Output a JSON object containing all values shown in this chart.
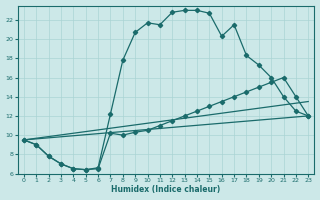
{
  "xlabel": "Humidex (Indice chaleur)",
  "xlim": [
    -0.5,
    23.5
  ],
  "ylim": [
    6,
    23.5
  ],
  "xticks": [
    0,
    1,
    2,
    3,
    4,
    5,
    6,
    7,
    8,
    9,
    10,
    11,
    12,
    13,
    14,
    15,
    16,
    17,
    18,
    19,
    20,
    21,
    22,
    23
  ],
  "yticks": [
    6,
    8,
    10,
    12,
    14,
    16,
    18,
    20,
    22
  ],
  "bg_color": "#cce8e8",
  "line_color": "#1a6b6b",
  "grid_color": "#aad4d4",
  "upper_curve": {
    "x": [
      0,
      1,
      2,
      3,
      4,
      5,
      6,
      7,
      8,
      9,
      10,
      11,
      12,
      13,
      14,
      15,
      16,
      17,
      18,
      19,
      20,
      21,
      22,
      23
    ],
    "y": [
      9.5,
      9.0,
      7.8,
      7.0,
      6.5,
      6.4,
      6.6,
      12.2,
      17.8,
      20.7,
      21.7,
      21.5,
      22.8,
      23.0,
      23.0,
      22.7,
      20.3,
      21.5,
      18.3,
      17.3,
      16.0,
      14.0,
      12.5,
      12.0
    ]
  },
  "lower_curve": {
    "x": [
      0,
      1,
      2,
      3,
      4,
      5,
      6,
      7,
      8,
      9,
      10,
      11,
      12,
      13,
      14,
      15,
      16,
      17,
      18,
      19,
      20,
      21,
      22,
      23
    ],
    "y": [
      9.5,
      9.0,
      7.8,
      7.0,
      6.5,
      6.4,
      6.5,
      10.2,
      10.0,
      10.3,
      10.5,
      11.0,
      11.5,
      12.0,
      12.5,
      13.0,
      13.5,
      14.0,
      14.5,
      15.0,
      15.5,
      16.0,
      14.0,
      12.0
    ]
  },
  "diag_line1": {
    "x": [
      0,
      23
    ],
    "y": [
      9.5,
      12.0
    ]
  },
  "diag_line2": {
    "x": [
      0,
      23
    ],
    "y": [
      9.5,
      13.5
    ]
  }
}
